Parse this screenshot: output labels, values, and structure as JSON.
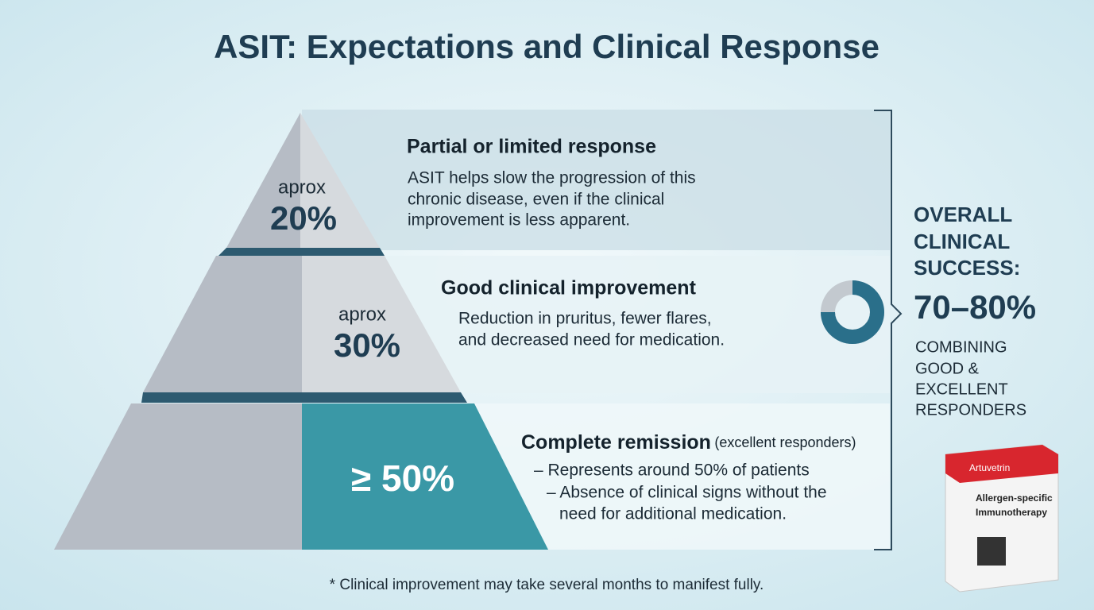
{
  "title": "ASIT: Expectations and Clinical Response",
  "tiers": [
    {
      "label": "aprox",
      "value": "20%",
      "heading": "Partial or limited response",
      "lines": [
        "ASIT helps slow the progression of this",
        "chronic disease, even if the clinical",
        "improvement is less apparent."
      ]
    },
    {
      "label": "aprox",
      "value": "30%",
      "heading": "Good clinical improvement",
      "lines": [
        "Reduction in pruritus, fewer flares,",
        "and decreased need for medication."
      ]
    },
    {
      "value": "≥ 50%",
      "heading": "Complete remission",
      "note": "(excellent responders)",
      "lines": [
        "– Represents around 50% of patients",
        "– Absence of clinical signs without the",
        "need for additional medication."
      ]
    }
  ],
  "summary": {
    "heading": [
      "OVERALL",
      "CLINICAL",
      "SUCCESS:"
    ],
    "value": "70–80%",
    "lines": [
      "COMBINING",
      "GOOD &",
      "EXCELLENT",
      "RESPONDERS"
    ]
  },
  "product": {
    "brand": "Artuvetrin",
    "name": [
      "Allergen-specific",
      "Immunotherapy"
    ]
  },
  "footnote": "* Clinical improvement may take several months to manifest fully."
}
